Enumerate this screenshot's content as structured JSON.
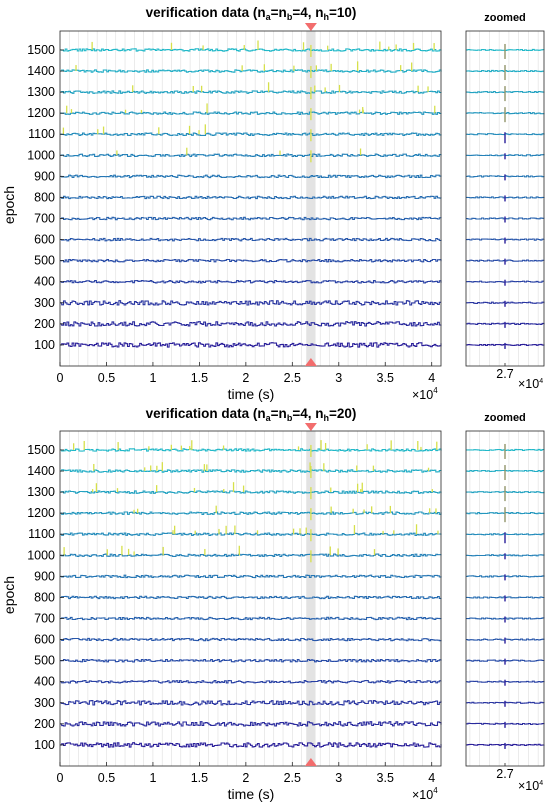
{
  "chart_data": [
    {
      "type": "line",
      "title": "verification data (n_a=n_b=4, n_h=10)",
      "title_parts": {
        "prefix": "verification data  (n",
        "sub_a": "a",
        "mid1": "=n",
        "sub_b": "b",
        "mid2": "=4,  n",
        "sub_h": "h",
        "suffix": "=10)"
      },
      "xlabel": "time (s)",
      "ylabel": "epoch",
      "x_exponent_label": "×10",
      "x_exponent": "4",
      "xlim": [
        0,
        41000
      ],
      "ylim": [
        0,
        1590
      ],
      "xticks": [
        0,
        5000,
        10000,
        15000,
        20000,
        25000,
        30000,
        35000,
        40000
      ],
      "xtick_labels": [
        "0",
        "0.5",
        "1",
        "1.5",
        "2",
        "2.5",
        "3",
        "3.5",
        "4"
      ],
      "yticks": [
        100,
        200,
        300,
        400,
        500,
        600,
        700,
        800,
        900,
        1000,
        1100,
        1200,
        1300,
        1400,
        1500
      ],
      "epochs": [
        100,
        200,
        300,
        400,
        500,
        600,
        700,
        800,
        900,
        1000,
        1100,
        1200,
        1300,
        1400,
        1500
      ],
      "marker_time": 27000,
      "highlight_band": [
        26500,
        27500
      ],
      "colormap": "parula",
      "spike_density": 0.55,
      "grid": true
    },
    {
      "type": "line",
      "title": "zoomed",
      "xlim": [
        26000,
        28000
      ],
      "xticks": [
        27000
      ],
      "xtick_labels": [
        "2.7"
      ],
      "x_exponent_label": "×10",
      "x_exponent": "4",
      "ylim": [
        0,
        1590
      ],
      "epochs": [
        100,
        200,
        300,
        400,
        500,
        600,
        700,
        800,
        900,
        1000,
        1100,
        1200,
        1300,
        1400,
        1500
      ],
      "spike_at": 27000
    },
    {
      "type": "line",
      "title": "verification data (n_a=n_b=4, n_h=20)",
      "title_parts": {
        "prefix": "verification data  (n",
        "sub_a": "a",
        "mid1": "=n",
        "sub_b": "b",
        "mid2": "=4,  n",
        "sub_h": "h",
        "suffix": "=20)"
      },
      "xlabel": "time (s)",
      "ylabel": "epoch",
      "x_exponent_label": "×10",
      "x_exponent": "4",
      "xlim": [
        0,
        41000
      ],
      "ylim": [
        0,
        1590
      ],
      "xticks": [
        0,
        5000,
        10000,
        15000,
        20000,
        25000,
        30000,
        35000,
        40000
      ],
      "xtick_labels": [
        "0",
        "0.5",
        "1",
        "1.5",
        "2",
        "2.5",
        "3",
        "3.5",
        "4"
      ],
      "yticks": [
        100,
        200,
        300,
        400,
        500,
        600,
        700,
        800,
        900,
        1000,
        1100,
        1200,
        1300,
        1400,
        1500
      ],
      "epochs": [
        100,
        200,
        300,
        400,
        500,
        600,
        700,
        800,
        900,
        1000,
        1100,
        1200,
        1300,
        1400,
        1500
      ],
      "marker_time": 27000,
      "highlight_band": [
        26500,
        27500
      ],
      "colormap": "parula",
      "spike_density": 0.95,
      "grid": true
    },
    {
      "type": "line",
      "title": "zoomed",
      "xlim": [
        26000,
        28000
      ],
      "xticks": [
        27000
      ],
      "xtick_labels": [
        "2.7"
      ],
      "x_exponent_label": "×10",
      "x_exponent": "4",
      "ylim": [
        0,
        1590
      ],
      "epochs": [
        100,
        200,
        300,
        400,
        500,
        600,
        700,
        800,
        900,
        1000,
        1100,
        1200,
        1300,
        1400,
        1500
      ],
      "spike_at": 27000
    }
  ],
  "colors": {
    "axis": "#262626",
    "grid": "#dedede",
    "band": "#e3e3e3",
    "marker": "#f26d6d",
    "low_epoch": "#2a1f9a",
    "high_epoch": "#21b8c8",
    "spike_high": "#d6e04a"
  }
}
